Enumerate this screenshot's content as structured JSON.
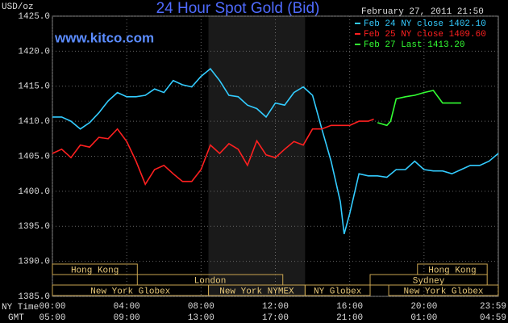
{
  "chart_data": {
    "type": "line",
    "title": "24 Hour Spot Gold (Bid)",
    "site": "www.kitco.com",
    "timestamp": "February 27, 2011 21:50",
    "y_label": "USD/oz",
    "x_row_labels": [
      "NY Time",
      "GMT"
    ],
    "xlim": [
      0,
      24
    ],
    "ylim": [
      1385,
      1425
    ],
    "xticks": [
      {
        "value": 0,
        "label": "00:00"
      },
      {
        "value": 4,
        "label": "04:00"
      },
      {
        "value": 8,
        "label": "08:00"
      },
      {
        "value": 12,
        "label": "12:00"
      },
      {
        "value": 16,
        "label": "16:00"
      },
      {
        "value": 20,
        "label": "20:00"
      },
      {
        "value": 23.98,
        "label": "23:59"
      }
    ],
    "gmt_labels": [
      "05:00",
      "09:00",
      "13:00",
      "17:00",
      "21:00",
      "01:00",
      "04:59"
    ],
    "yticks": [
      {
        "value": 1385,
        "label": "1385.0"
      },
      {
        "value": 1390,
        "label": "1390.0"
      },
      {
        "value": 1395,
        "label": "1395.0"
      },
      {
        "value": 1400,
        "label": "1400.0"
      },
      {
        "value": 1405,
        "label": "1405.0"
      },
      {
        "value": 1410,
        "label": "1410.0"
      },
      {
        "value": 1415,
        "label": "1415.0"
      },
      {
        "value": 1420,
        "label": "1420.0"
      },
      {
        "value": 1425,
        "label": "1425.0"
      }
    ],
    "grid": true,
    "sessions": [
      [
        {
          "name": "Hong Kong",
          "start": 0,
          "end": 4.57
        },
        {
          "name": "Hong Kong",
          "start": 19.65,
          "end": 23.4
        }
      ],
      [
        {
          "name": "London",
          "start": 4.57,
          "end": 12.4
        },
        {
          "name": "Sydney",
          "start": 17.1,
          "end": 23.4
        }
      ],
      [
        {
          "name": "New York Globex",
          "start": 0,
          "end": 8.4
        },
        {
          "name": "New York NYMEX",
          "start": 8.4,
          "end": 13.6,
          "shade": true
        },
        {
          "name": "NY Globex",
          "start": 13.6,
          "end": 17.1
        },
        {
          "name": "New York Globex",
          "start": 18.1,
          "end": 24
        }
      ]
    ],
    "series": [
      {
        "name": "Feb 24 NY close 1402.10",
        "color": "#33ccff",
        "x": [
          0,
          0.5,
          1,
          1.5,
          2,
          2.5,
          3,
          3.5,
          4,
          4.5,
          5,
          5.5,
          6,
          6.5,
          7,
          7.5,
          8,
          8.5,
          9,
          9.5,
          10,
          10.5,
          11,
          11.5,
          12,
          12.5,
          13,
          13.5,
          14,
          14.5,
          15,
          15.5,
          15.7,
          16,
          16.5,
          17,
          17.5,
          18,
          18.5,
          19,
          19.5,
          20,
          20.5,
          21,
          21.5,
          22,
          22.5,
          23,
          23.5,
          24
        ],
        "values": [
          1410.6,
          1410.6,
          1410.0,
          1408.9,
          1409.8,
          1411.2,
          1412.9,
          1414.1,
          1413.5,
          1413.5,
          1413.7,
          1414.6,
          1414.1,
          1415.8,
          1415.2,
          1414.9,
          1416.4,
          1417.5,
          1415.8,
          1413.7,
          1413.5,
          1412.3,
          1411.8,
          1410.6,
          1412.6,
          1412.3,
          1414.1,
          1414.9,
          1413.7,
          1408.9,
          1404.3,
          1398.5,
          1393.9,
          1396.8,
          1402.5,
          1402.2,
          1402.2,
          1402.0,
          1403.1,
          1403.1,
          1404.3,
          1403.1,
          1402.9,
          1402.9,
          1402.5,
          1403.1,
          1403.7,
          1403.7,
          1404.3,
          1405.4
        ]
      },
      {
        "name": "Feb 25 NY close 1409.60",
        "color": "#ff2020",
        "x": [
          0,
          0.5,
          1,
          1.5,
          2,
          2.5,
          3,
          3.5,
          4,
          4.5,
          5,
          5.5,
          6,
          6.5,
          7,
          7.5,
          8,
          8.5,
          9,
          9.5,
          10,
          10.5,
          11,
          11.5,
          12,
          12.5,
          13,
          13.5,
          14,
          14.5,
          15,
          15.5,
          16,
          16.5,
          17,
          17.3
        ],
        "values": [
          1405.4,
          1406.0,
          1404.8,
          1406.6,
          1406.3,
          1407.7,
          1407.5,
          1408.9,
          1407.1,
          1404.3,
          1401.0,
          1403.1,
          1403.7,
          1402.5,
          1401.4,
          1401.4,
          1403.1,
          1406.6,
          1405.4,
          1406.8,
          1406.0,
          1403.7,
          1407.2,
          1405.2,
          1404.8,
          1406.0,
          1407.1,
          1406.6,
          1408.9,
          1408.9,
          1409.4,
          1409.4,
          1409.4,
          1410.0,
          1410.0,
          1410.3
        ]
      },
      {
        "name": "Feb 27 Last 1413.20",
        "color": "#33ff33",
        "x": [
          17.5,
          18,
          18.2,
          18.5,
          19,
          19.5,
          20,
          20.5,
          21,
          21.5,
          22
        ],
        "values": [
          1409.8,
          1409.4,
          1410.0,
          1413.2,
          1413.5,
          1413.7,
          1414.1,
          1414.4,
          1412.6,
          1412.6,
          1412.6
        ]
      }
    ]
  }
}
